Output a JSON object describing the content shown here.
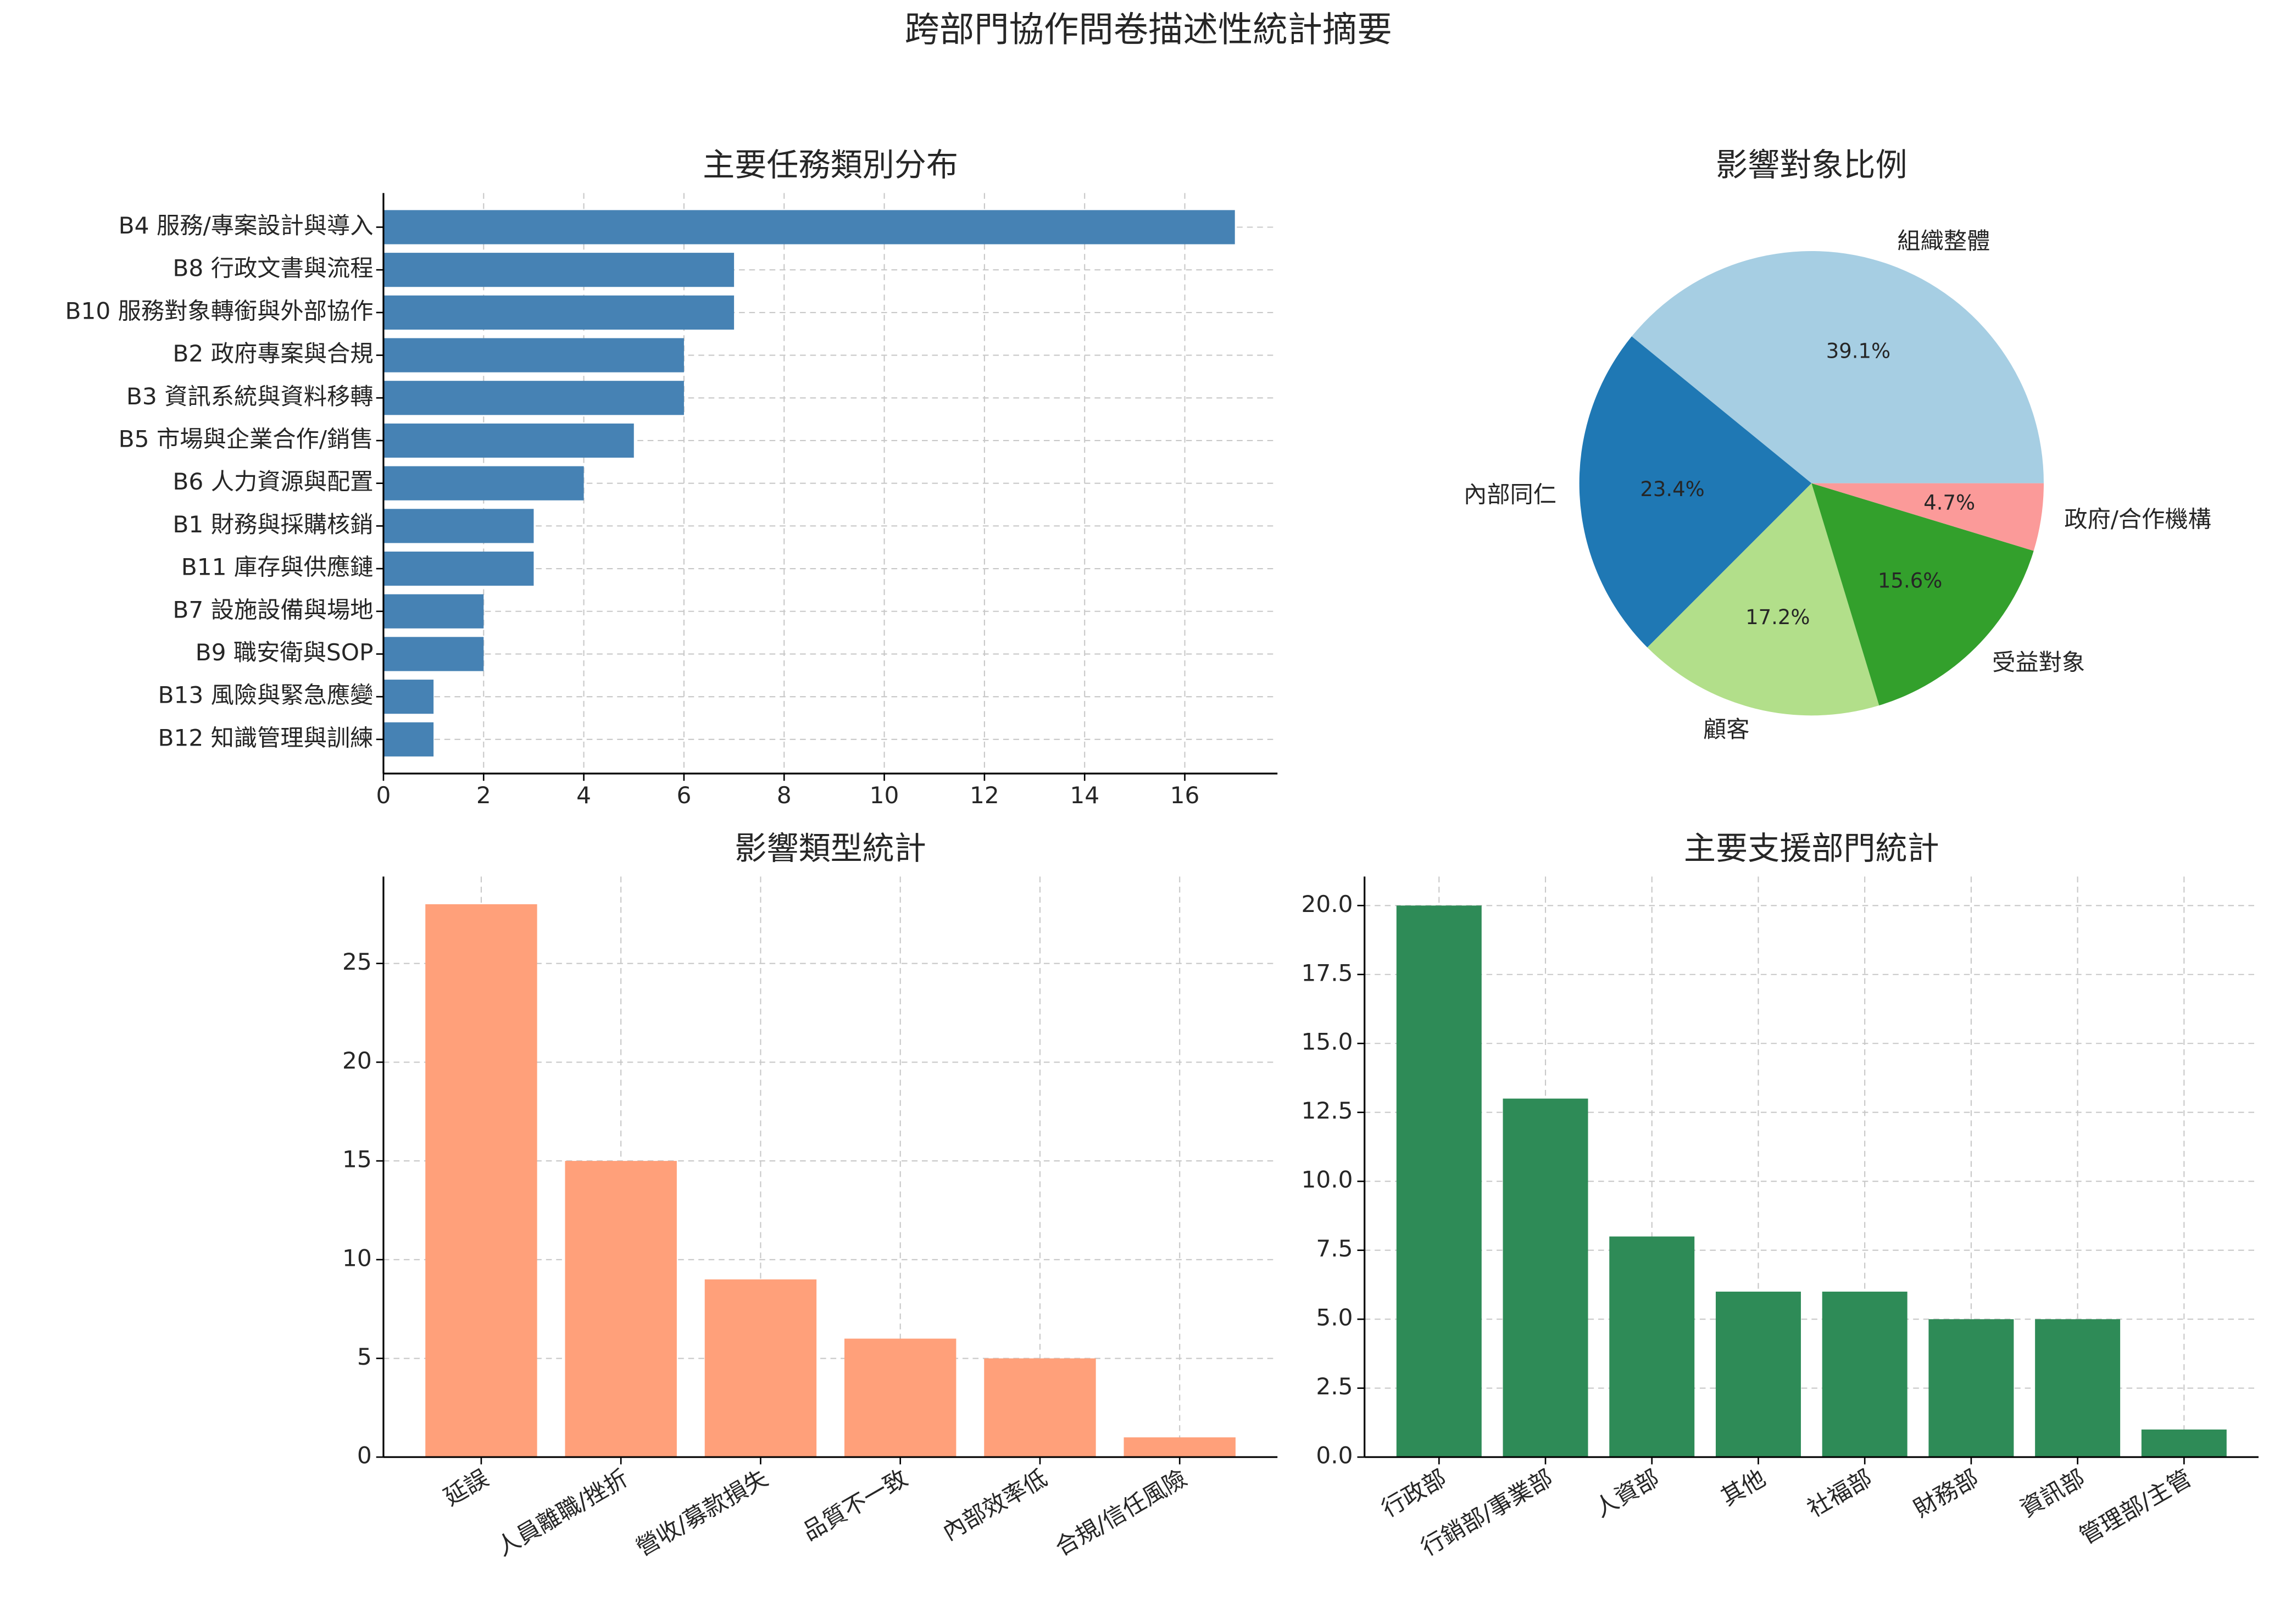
{
  "title": "跨部門協作問卷描述性統計摘要",
  "chart_data": [
    {
      "type": "barh",
      "title": "主要任務類別分布",
      "categories": [
        "B4 服務/專案設計與導入",
        "B8 行政文書與流程",
        "B10 服務對象轉銜與外部協作",
        "B2 政府專案與合規",
        "B3 資訊系統與資料移轉",
        "B5 市場與企業合作/銷售",
        "B6 人力資源與配置",
        "B1 財務與採購核銷",
        "B11 庫存與供應鏈",
        "B7 設施設備與場地",
        "B9 職安衛與SOP",
        "B13 風險與緊急應變",
        "B12 知識管理與訓練"
      ],
      "values": [
        17,
        7,
        7,
        6,
        6,
        5,
        4,
        3,
        3,
        2,
        2,
        1,
        1
      ],
      "color": "#4682b4",
      "xlim": [
        0,
        17.85
      ],
      "xticks": [
        0,
        2,
        4,
        6,
        8,
        10,
        12,
        14,
        16
      ],
      "grid": true
    },
    {
      "type": "pie",
      "title": "影響對象比例",
      "categories": [
        "組織整體",
        "內部同仁",
        "顧客",
        "受益對象",
        "政府/合作機構"
      ],
      "values": [
        39.1,
        23.4,
        17.2,
        15.6,
        4.7
      ],
      "value_labels": [
        "39.1%",
        "23.4%",
        "17.2%",
        "15.6%",
        "4.7%"
      ],
      "colors": [
        "#a6cee3",
        "#1f78b4",
        "#b2df8a",
        "#33a02c",
        "#fb9a99"
      ]
    },
    {
      "type": "bar",
      "title": "影響類型統計",
      "categories": [
        "延誤",
        "人員離職/挫折",
        "營收/募款損失",
        "品質不一致",
        "內部效率低",
        "合規/信任風險"
      ],
      "values": [
        28,
        15,
        9,
        6,
        5,
        1
      ],
      "color": "#ffa07a",
      "ylim": [
        0,
        29.4
      ],
      "yticks": [
        0,
        5,
        10,
        15,
        20,
        25
      ],
      "grid": true
    },
    {
      "type": "bar",
      "title": "主要支援部門統計",
      "categories": [
        "行政部",
        "行銷部/事業部",
        "人資部",
        "其他",
        "社福部",
        "財務部",
        "資訊部",
        "管理部/主管"
      ],
      "values": [
        20,
        13,
        8,
        6,
        6,
        5,
        5,
        1
      ],
      "color": "#2e8b57",
      "ylim": [
        0,
        21.05
      ],
      "yticks": [
        {
          "value": 0,
          "label": "0.0"
        },
        {
          "value": 2.5,
          "label": "2.5"
        },
        {
          "value": 5,
          "label": "5.0"
        },
        {
          "value": 7.5,
          "label": "7.5"
        },
        {
          "value": 10,
          "label": "10.0"
        },
        {
          "value": 12.5,
          "label": "12.5"
        },
        {
          "value": 15,
          "label": "15.0"
        },
        {
          "value": 17.5,
          "label": "17.5"
        },
        {
          "value": 20,
          "label": "20.0"
        }
      ],
      "grid": true
    }
  ]
}
